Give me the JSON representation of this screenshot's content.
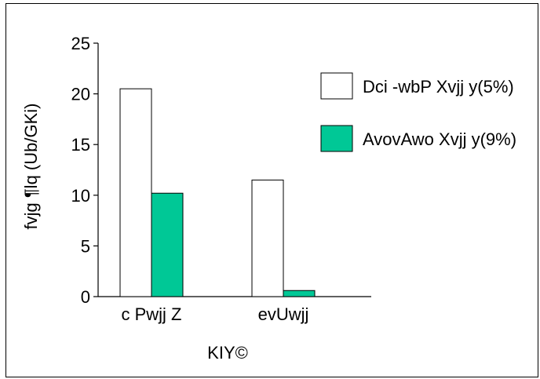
{
  "chart_data": {
    "type": "bar",
    "categories": [
      "c Pwjj Z",
      "evUwjj"
    ],
    "series": [
      {
        "name": "Dci -wbP Xvjj y(5%)",
        "values": [
          20.5,
          11.5
        ],
        "color": "#ffffff"
      },
      {
        "name": "AvovAwo Xvjj y(9%)",
        "values": [
          10.2,
          0.6
        ],
        "color": "#00c896"
      }
    ],
    "title": "",
    "xlabel": "KIY©",
    "ylabel": "fvjg ¶lq (Ub/GKi)",
    "ylim": [
      0,
      25
    ],
    "yticks": [
      0,
      5,
      10,
      15,
      20,
      25
    ],
    "grid": false,
    "legend_position": "right"
  }
}
